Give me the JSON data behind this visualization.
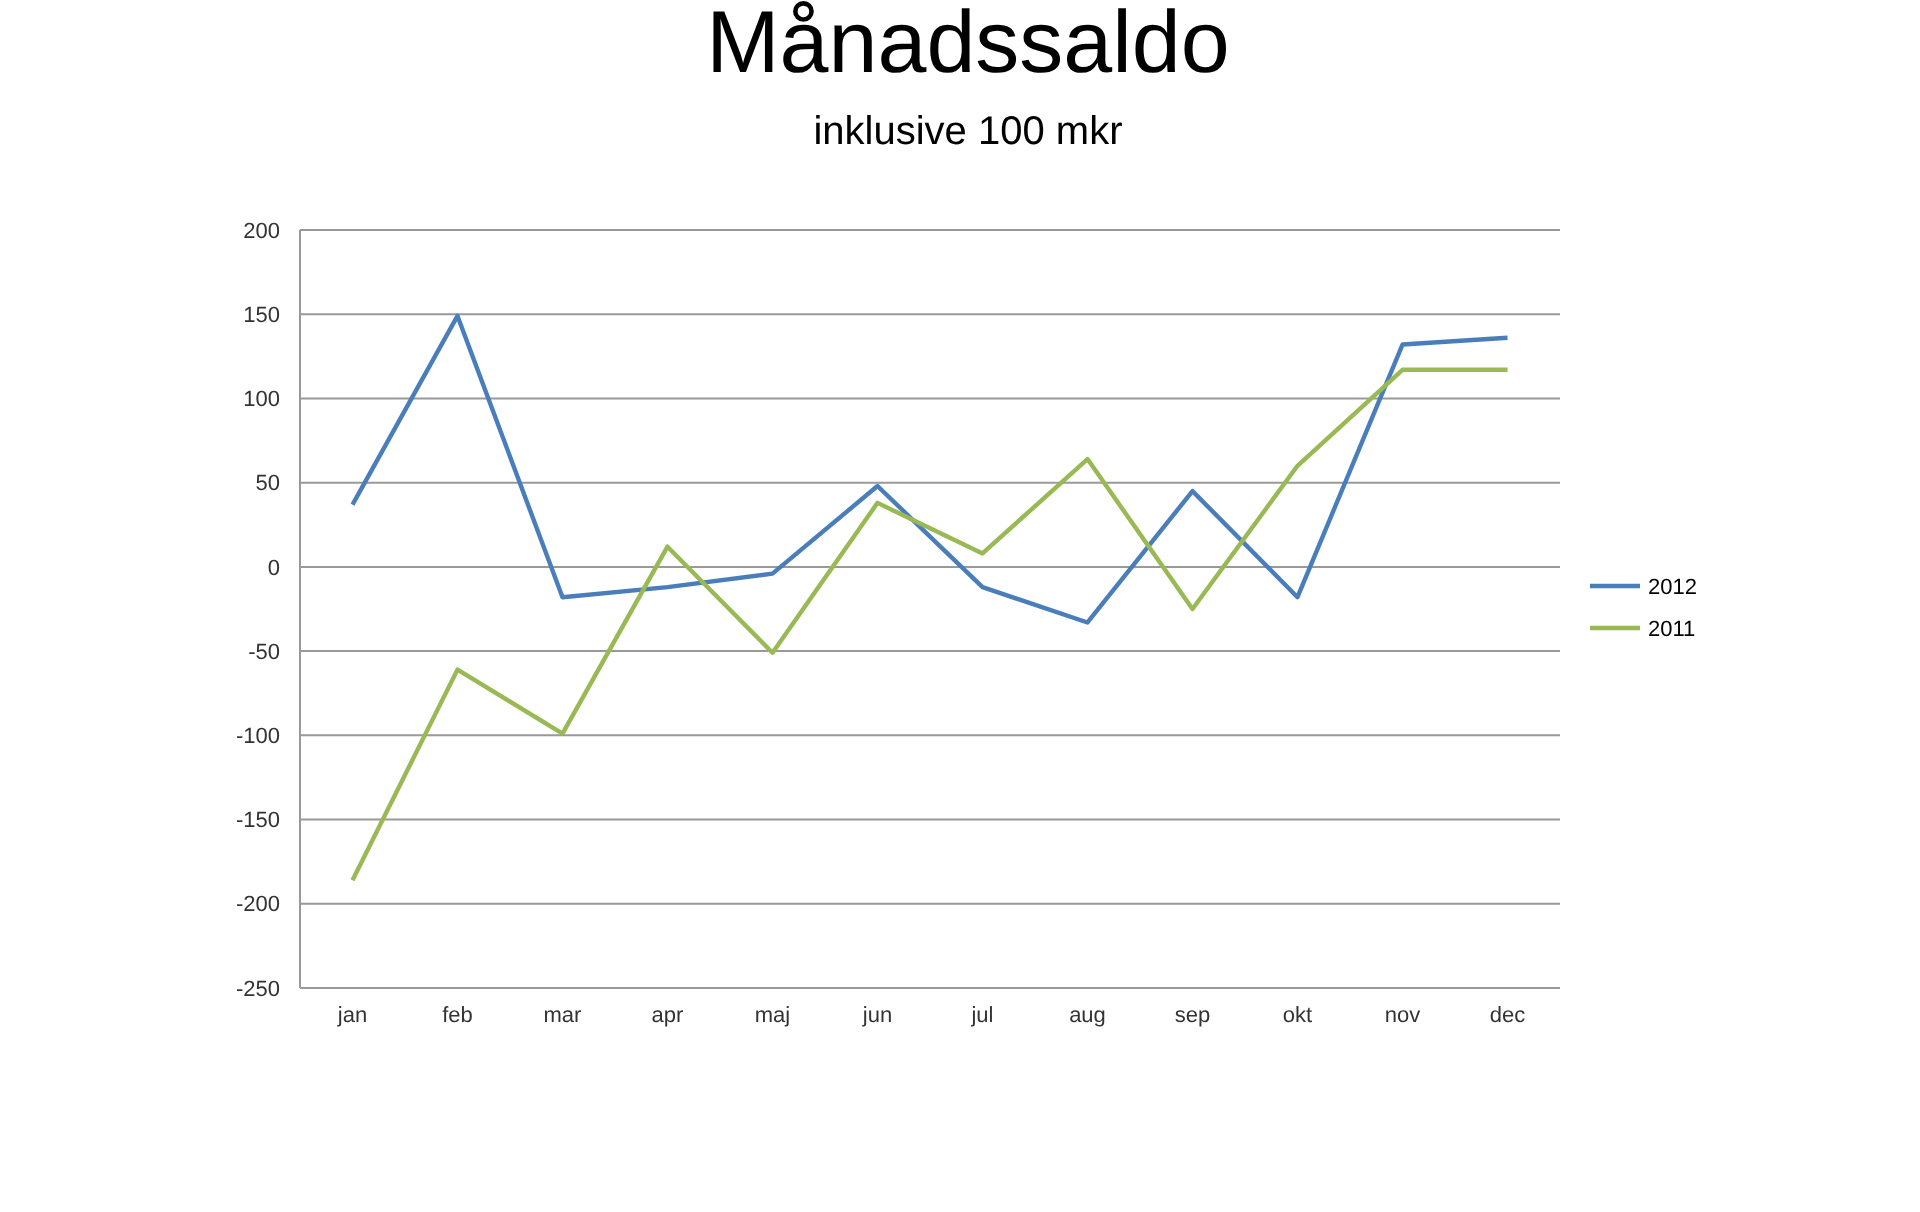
{
  "chart_data": {
    "type": "line",
    "title": "Månadssaldo",
    "subtitle": "inklusive 100 mkr",
    "categories": [
      "jan",
      "feb",
      "mar",
      "apr",
      "maj",
      "jun",
      "jul",
      "aug",
      "sep",
      "okt",
      "nov",
      "dec"
    ],
    "series": [
      {
        "name": "2012",
        "color": "#4a7ebb",
        "values": [
          37,
          149,
          -18,
          -12,
          -4,
          48,
          -12,
          -33,
          45,
          -18,
          132,
          136
        ]
      },
      {
        "name": "2011",
        "color": "#98b954",
        "values": [
          -186,
          -61,
          -99,
          12,
          -51,
          38,
          8,
          64,
          -25,
          60,
          117,
          117
        ]
      }
    ],
    "ylim": [
      -250,
      200
    ],
    "yticks": [
      -250,
      -200,
      -150,
      -100,
      -50,
      0,
      50,
      100,
      150,
      200
    ],
    "grid": "y",
    "legend": "right",
    "marker": "none",
    "line_style": "solid"
  }
}
